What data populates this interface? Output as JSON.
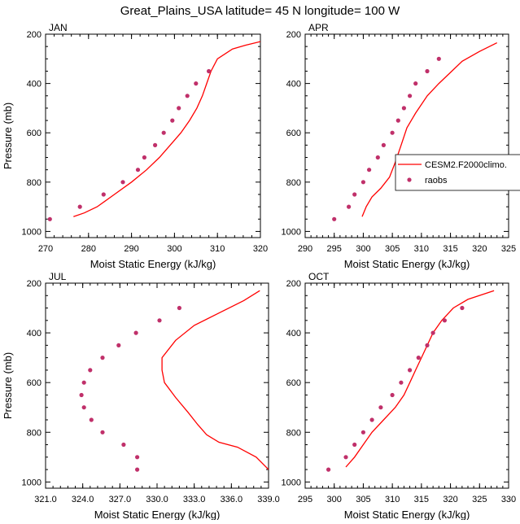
{
  "title": "Great_Plains_USA  latitude= 45 N longitude= 100 W",
  "chart_data": [
    {
      "type": "line",
      "panel_label": "JAN",
      "xlabel": "Moist Static Energy (kJ/kg)",
      "ylabel": "Pressure (mb)",
      "xlim": [
        270,
        320
      ],
      "ylim": [
        1025,
        200
      ],
      "xticks": [
        "270",
        "280",
        "290",
        "300",
        "310",
        "320"
      ],
      "yticks": [
        "200",
        "400",
        "600",
        "800",
        "1000"
      ],
      "series": [
        {
          "name": "CESM2.F2000climo.",
          "style": "line",
          "color": "#ff0000",
          "points": [
            [
              276.5,
              940
            ],
            [
              279,
              925
            ],
            [
              282,
              900
            ],
            [
              286,
              850
            ],
            [
              290,
              800
            ],
            [
              293.5,
              750
            ],
            [
              296.5,
              700
            ],
            [
              299,
              650
            ],
            [
              301.5,
              600
            ],
            [
              303.5,
              550
            ],
            [
              305.2,
              500
            ],
            [
              306.5,
              450
            ],
            [
              307.5,
              400
            ],
            [
              308.5,
              350
            ],
            [
              310,
              300
            ],
            [
              313.5,
              260
            ],
            [
              316.5,
              245
            ],
            [
              320,
              230
            ]
          ]
        },
        {
          "name": "raobs",
          "style": "marker",
          "color": "#c0306a",
          "points": [
            [
              271,
              950
            ],
            [
              278,
              900
            ],
            [
              283.5,
              850
            ],
            [
              288,
              800
            ],
            [
              291.5,
              750
            ],
            [
              293,
              700
            ],
            [
              295.5,
              650
            ],
            [
              297.5,
              600
            ],
            [
              299.5,
              550
            ],
            [
              301,
              500
            ],
            [
              303,
              450
            ],
            [
              305,
              400
            ],
            [
              308,
              350
            ]
          ]
        }
      ]
    },
    {
      "type": "line",
      "panel_label": "APR",
      "xlabel": "Moist Static Energy (kJ/kg)",
      "ylabel": "",
      "xlim": [
        290,
        325
      ],
      "ylim": [
        1025,
        200
      ],
      "xticks": [
        "290",
        "295",
        "300",
        "305",
        "310",
        "315",
        "320",
        "325"
      ],
      "yticks": [
        "200",
        "400",
        "600",
        "800",
        "1000"
      ],
      "legend": {
        "position": "right",
        "entries": [
          "CESM2.F2000climo.",
          "raobs"
        ]
      },
      "series": [
        {
          "name": "CESM2.F2000climo.",
          "style": "line",
          "color": "#ff0000",
          "points": [
            [
              299.8,
              940
            ],
            [
              300.5,
              900
            ],
            [
              301.5,
              860
            ],
            [
              303,
              825
            ],
            [
              304.5,
              780
            ],
            [
              305.5,
              720
            ],
            [
              306.5,
              650
            ],
            [
              307.5,
              580
            ],
            [
              309,
              520
            ],
            [
              311,
              450
            ],
            [
              313,
              400
            ],
            [
              315,
              355
            ],
            [
              317,
              310
            ],
            [
              320,
              270
            ],
            [
              323,
              235
            ]
          ]
        },
        {
          "name": "raobs",
          "style": "marker",
          "color": "#c0306a",
          "points": [
            [
              295,
              950
            ],
            [
              297.5,
              900
            ],
            [
              298.5,
              850
            ],
            [
              300,
              800
            ],
            [
              301,
              750
            ],
            [
              302.5,
              700
            ],
            [
              303.5,
              650
            ],
            [
              305,
              600
            ],
            [
              306,
              550
            ],
            [
              307,
              500
            ],
            [
              308,
              450
            ],
            [
              309,
              400
            ],
            [
              311,
              350
            ],
            [
              313,
              300
            ]
          ]
        }
      ]
    },
    {
      "type": "line",
      "panel_label": "JUL",
      "xlabel": "Moist Static Energy (kJ/kg)",
      "ylabel": "Pressure (mb)",
      "xlim": [
        321,
        339
      ],
      "ylim": [
        1025,
        200
      ],
      "xticks": [
        "321.0",
        "324.0",
        "327.0",
        "330.0",
        "333.0",
        "336.0",
        "339.0"
      ],
      "yticks": [
        "200",
        "400",
        "600",
        "800",
        "1000"
      ],
      "series": [
        {
          "name": "CESM2.F2000climo.",
          "style": "line",
          "color": "#ff0000",
          "points": [
            [
              339,
              950
            ],
            [
              338,
              900
            ],
            [
              336.5,
              860
            ],
            [
              335,
              840
            ],
            [
              334,
              810
            ],
            [
              333.3,
              770
            ],
            [
              332.5,
              720
            ],
            [
              331.5,
              660
            ],
            [
              330.6,
              600
            ],
            [
              330.4,
              550
            ],
            [
              330.4,
              500
            ],
            [
              331.5,
              430
            ],
            [
              333,
              370
            ],
            [
              335,
              320
            ],
            [
              337,
              270
            ],
            [
              338.3,
              230
            ]
          ]
        },
        {
          "name": "raobs",
          "style": "marker",
          "color": "#c0306a",
          "points": [
            [
              328.4,
              950
            ],
            [
              328.4,
              900
            ],
            [
              327.3,
              850
            ],
            [
              325.6,
              800
            ],
            [
              324.7,
              750
            ],
            [
              324.1,
              700
            ],
            [
              323.9,
              650
            ],
            [
              324.1,
              600
            ],
            [
              324.6,
              550
            ],
            [
              325.6,
              500
            ],
            [
              326.9,
              450
            ],
            [
              328.3,
              400
            ],
            [
              330.2,
              350
            ],
            [
              331.8,
              300
            ]
          ]
        }
      ]
    },
    {
      "type": "line",
      "panel_label": "OCT",
      "xlabel": "Moist Static Energy (kJ/kg)",
      "ylabel": "",
      "xlim": [
        295,
        330
      ],
      "ylim": [
        1025,
        200
      ],
      "xticks": [
        "295",
        "300",
        "305",
        "310",
        "315",
        "320",
        "325",
        "330"
      ],
      "yticks": [
        "200",
        "400",
        "600",
        "800",
        "1000"
      ],
      "series": [
        {
          "name": "CESM2.F2000climo.",
          "style": "line",
          "color": "#ff0000",
          "points": [
            [
              302,
              940
            ],
            [
              303.5,
              900
            ],
            [
              305,
              850
            ],
            [
              306.5,
              800
            ],
            [
              308.5,
              750
            ],
            [
              310.5,
              700
            ],
            [
              312,
              650
            ],
            [
              313,
              600
            ],
            [
              314,
              550
            ],
            [
              315,
              500
            ],
            [
              316,
              450
            ],
            [
              317,
              400
            ],
            [
              318.5,
              350
            ],
            [
              320.5,
              300
            ],
            [
              323,
              265
            ],
            [
              327.5,
              230
            ]
          ]
        },
        {
          "name": "raobs",
          "style": "marker",
          "color": "#c0306a",
          "points": [
            [
              299,
              950
            ],
            [
              302,
              900
            ],
            [
              303.5,
              850
            ],
            [
              305,
              800
            ],
            [
              306.5,
              750
            ],
            [
              308,
              700
            ],
            [
              310,
              650
            ],
            [
              311.5,
              600
            ],
            [
              313,
              550
            ],
            [
              314.5,
              500
            ],
            [
              316,
              450
            ],
            [
              317,
              400
            ],
            [
              319,
              350
            ],
            [
              322,
              300
            ]
          ]
        }
      ]
    }
  ]
}
